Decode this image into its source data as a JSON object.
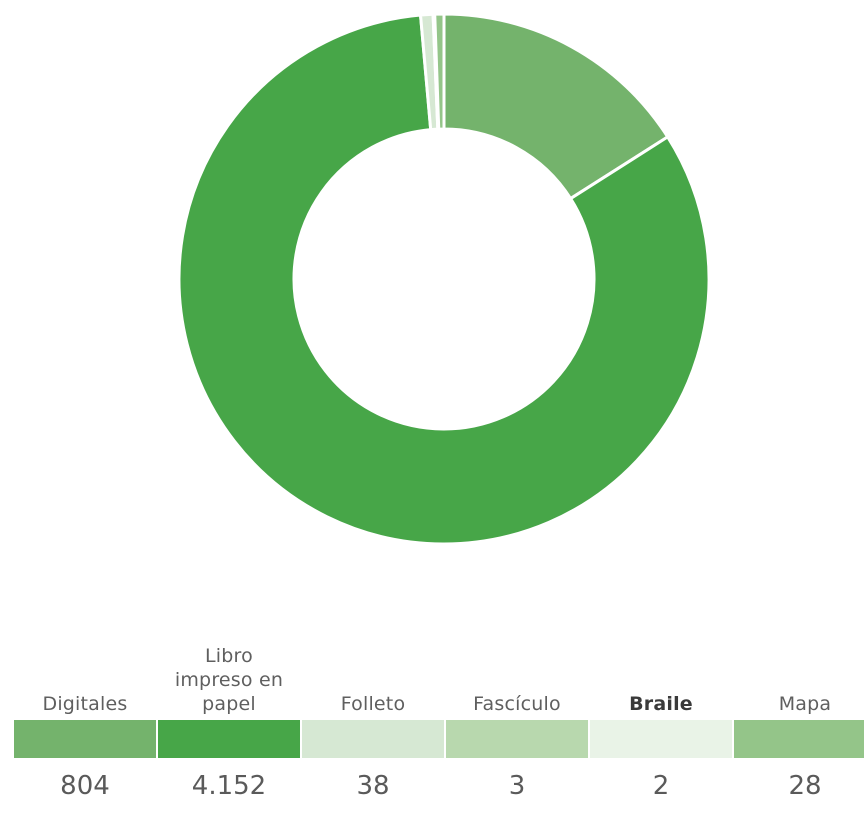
{
  "chart_data": {
    "type": "pie",
    "categories": [
      "Digitales",
      "Libro impreso en papel",
      "Folleto",
      "Fascículo",
      "Braile",
      "Mapa"
    ],
    "values": [
      804,
      4152,
      38,
      3,
      2,
      28
    ],
    "value_labels": [
      "804",
      "4.152",
      "38",
      "3",
      "2",
      "28"
    ],
    "label_lines": [
      [
        "Digitales"
      ],
      [
        "Libro",
        "impreso en",
        "papel"
      ],
      [
        "Folleto"
      ],
      [
        "Fascículo"
      ],
      [
        "Braile"
      ],
      [
        "Mapa"
      ]
    ],
    "colors": [
      "#74b36c",
      "#47a648",
      "#d6e8d3",
      "#b8d8ae",
      "#e9f3e7",
      "#94c589"
    ],
    "legend_emphasis": [
      "normal",
      "normal",
      "normal",
      "normal",
      "bold",
      "normal"
    ],
    "legend_position": "bottom",
    "donut": true,
    "start": "top",
    "direction": "clockwise"
  }
}
